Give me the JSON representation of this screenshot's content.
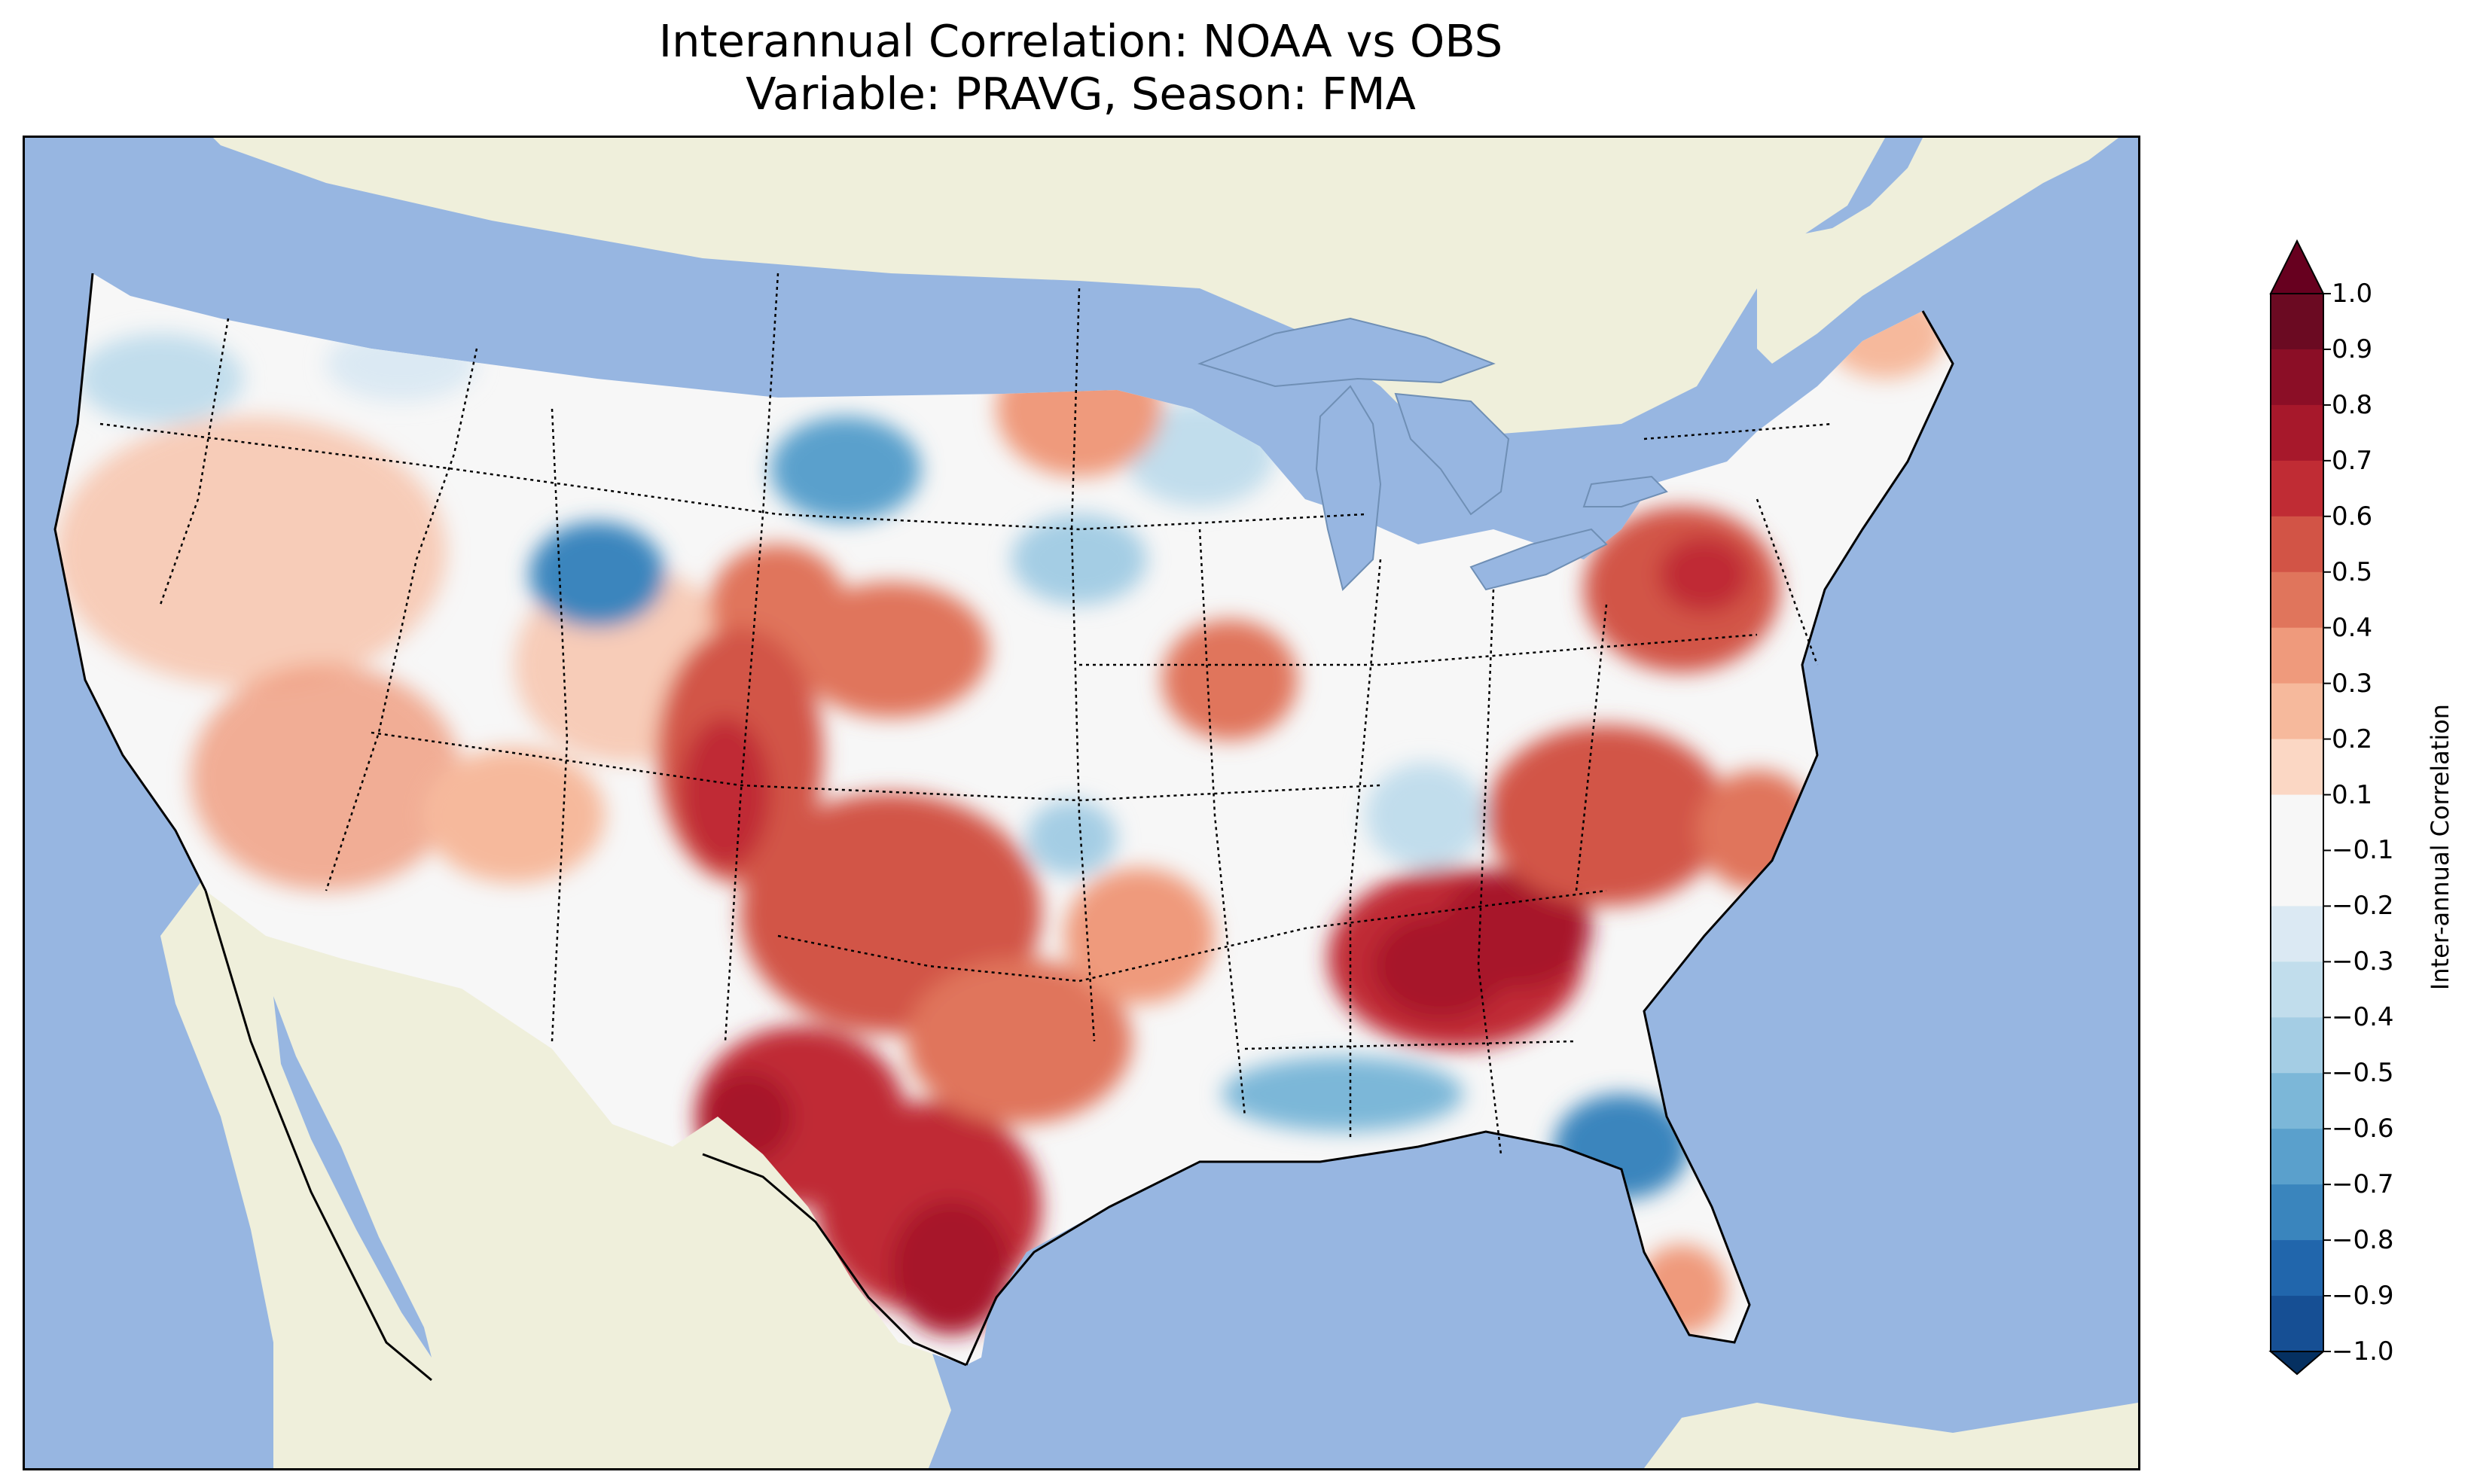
{
  "title_line1": "Interannual Correlation: NOAA vs OBS",
  "title_line2": "Variable: PRAVG, Season: FMA",
  "colorbar": {
    "label": "Inter-annual Correlation",
    "ticks": [
      "1.0",
      "0.9",
      "0.8",
      "0.7",
      "0.6",
      "0.5",
      "0.4",
      "0.3",
      "0.2",
      "0.1",
      "−0.1",
      "−0.2",
      "−0.3",
      "−0.4",
      "−0.5",
      "−0.6",
      "−0.7",
      "−0.8",
      "−0.9",
      "−1.0"
    ],
    "colors_top_to_bottom": [
      "#6b0a22",
      "#8b0e26",
      "#a7182b",
      "#c02c34",
      "#d25446",
      "#e0755c",
      "#ef9a7c",
      "#f6b99c",
      "#fbd7c4",
      "#f7f7f7",
      "#f7f7f7",
      "#dbe9f3",
      "#c1ddec",
      "#a4cde4",
      "#7cb7d8",
      "#5aa0cc",
      "#3a85bd",
      "#2166ac",
      "#164f94",
      "#0c3b7a",
      "#062e61"
    ],
    "over_color": "#67001f",
    "under_color": "#053061"
  },
  "map": {
    "ocean_color": "#97b6e1",
    "land_color": "#efefdb",
    "projection": "Lambert Conformal, CONUS"
  }
}
